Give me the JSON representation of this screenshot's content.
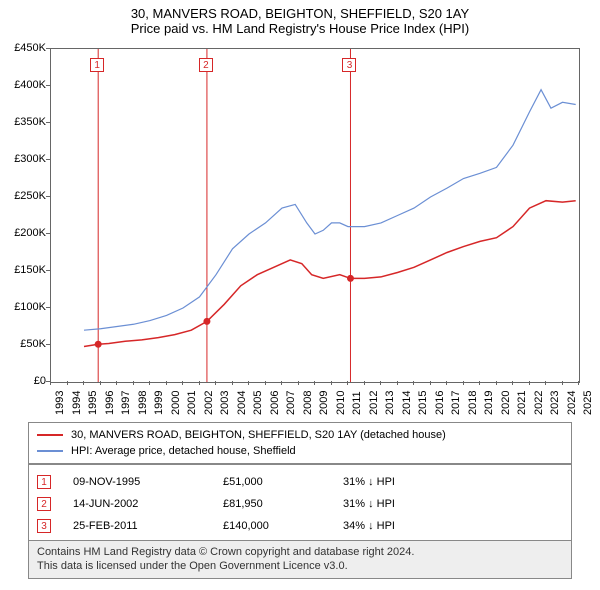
{
  "title": "30, MANVERS ROAD, BEIGHTON, SHEFFIELD, S20 1AY",
  "subtitle": "Price paid vs. HM Land Registry's House Price Index (HPI)",
  "chart": {
    "type": "line",
    "background_color": "#ffffff",
    "border_color": "#666666",
    "x_years": [
      1993,
      1994,
      1995,
      1996,
      1997,
      1998,
      1999,
      2000,
      2001,
      2002,
      2003,
      2004,
      2005,
      2006,
      2007,
      2008,
      2009,
      2010,
      2011,
      2012,
      2013,
      2014,
      2015,
      2016,
      2017,
      2018,
      2019,
      2020,
      2021,
      2022,
      2023,
      2024,
      2025
    ],
    "ylim": [
      0,
      450000
    ],
    "yticks": [
      0,
      50000,
      100000,
      150000,
      200000,
      250000,
      300000,
      350000,
      400000,
      450000
    ],
    "ytick_labels": [
      "£0",
      "£50K",
      "£100K",
      "£150K",
      "£200K",
      "£250K",
      "£300K",
      "£350K",
      "£400K",
      "£450K"
    ],
    "label_fontsize": 11,
    "series": [
      {
        "name": "property",
        "label": "30, MANVERS ROAD, BEIGHTON, SHEFFIELD, S20 1AY (detached house)",
        "color": "#d62728",
        "line_width": 1.5,
        "points_year_value": [
          [
            1995.0,
            48000
          ],
          [
            1995.86,
            51000
          ],
          [
            1996.5,
            52000
          ],
          [
            1997.5,
            55000
          ],
          [
            1998.5,
            57000
          ],
          [
            1999.5,
            60000
          ],
          [
            2000.5,
            64000
          ],
          [
            2001.5,
            70000
          ],
          [
            2002.45,
            81950
          ],
          [
            2003.5,
            105000
          ],
          [
            2004.5,
            130000
          ],
          [
            2005.5,
            145000
          ],
          [
            2006.5,
            155000
          ],
          [
            2007.5,
            165000
          ],
          [
            2008.2,
            160000
          ],
          [
            2008.8,
            145000
          ],
          [
            2009.5,
            140000
          ],
          [
            2010.5,
            145000
          ],
          [
            2011.15,
            140000
          ],
          [
            2012.0,
            140000
          ],
          [
            2013.0,
            142000
          ],
          [
            2014.0,
            148000
          ],
          [
            2015.0,
            155000
          ],
          [
            2016.0,
            165000
          ],
          [
            2017.0,
            175000
          ],
          [
            2018.0,
            183000
          ],
          [
            2019.0,
            190000
          ],
          [
            2020.0,
            195000
          ],
          [
            2021.0,
            210000
          ],
          [
            2022.0,
            235000
          ],
          [
            2023.0,
            245000
          ],
          [
            2024.0,
            243000
          ],
          [
            2024.8,
            245000
          ]
        ],
        "markers_year_value": [
          [
            1995.86,
            51000
          ],
          [
            2002.45,
            81950
          ],
          [
            2011.15,
            140000
          ]
        ]
      },
      {
        "name": "hpi",
        "label": "HPI: Average price, detached house, Sheffield",
        "color": "#6b8fd4",
        "line_width": 1.2,
        "points_year_value": [
          [
            1995.0,
            70000
          ],
          [
            1996.0,
            72000
          ],
          [
            1997.0,
            75000
          ],
          [
            1998.0,
            78000
          ],
          [
            1999.0,
            83000
          ],
          [
            2000.0,
            90000
          ],
          [
            2001.0,
            100000
          ],
          [
            2002.0,
            115000
          ],
          [
            2003.0,
            145000
          ],
          [
            2004.0,
            180000
          ],
          [
            2005.0,
            200000
          ],
          [
            2006.0,
            215000
          ],
          [
            2007.0,
            235000
          ],
          [
            2007.8,
            240000
          ],
          [
            2008.5,
            215000
          ],
          [
            2009.0,
            200000
          ],
          [
            2009.5,
            205000
          ],
          [
            2010.0,
            215000
          ],
          [
            2010.5,
            215000
          ],
          [
            2011.0,
            210000
          ],
          [
            2012.0,
            210000
          ],
          [
            2013.0,
            215000
          ],
          [
            2014.0,
            225000
          ],
          [
            2015.0,
            235000
          ],
          [
            2016.0,
            250000
          ],
          [
            2017.0,
            262000
          ],
          [
            2018.0,
            275000
          ],
          [
            2019.0,
            282000
          ],
          [
            2020.0,
            290000
          ],
          [
            2021.0,
            320000
          ],
          [
            2022.0,
            365000
          ],
          [
            2022.7,
            395000
          ],
          [
            2023.3,
            370000
          ],
          [
            2024.0,
            378000
          ],
          [
            2024.8,
            375000
          ]
        ]
      }
    ],
    "event_lines": [
      {
        "id": "1",
        "year": 1995.86
      },
      {
        "id": "2",
        "year": 2002.45
      },
      {
        "id": "3",
        "year": 2011.15
      }
    ]
  },
  "legend": [
    {
      "color": "#d62728",
      "label": "30, MANVERS ROAD, BEIGHTON, SHEFFIELD, S20 1AY (detached house)"
    },
    {
      "color": "#6b8fd4",
      "label": "HPI: Average price, detached house, Sheffield"
    }
  ],
  "events": [
    {
      "id": "1",
      "date": "09-NOV-1995",
      "price": "£51,000",
      "direction": "31% ↓ HPI"
    },
    {
      "id": "2",
      "date": "14-JUN-2002",
      "price": "£81,950",
      "direction": "31% ↓ HPI"
    },
    {
      "id": "3",
      "date": "25-FEB-2011",
      "price": "£140,000",
      "direction": "34% ↓ HPI"
    }
  ],
  "footer": {
    "line1": "Contains HM Land Registry data © Crown copyright and database right 2024.",
    "line2": "This data is licensed under the Open Government Licence v3.0."
  }
}
